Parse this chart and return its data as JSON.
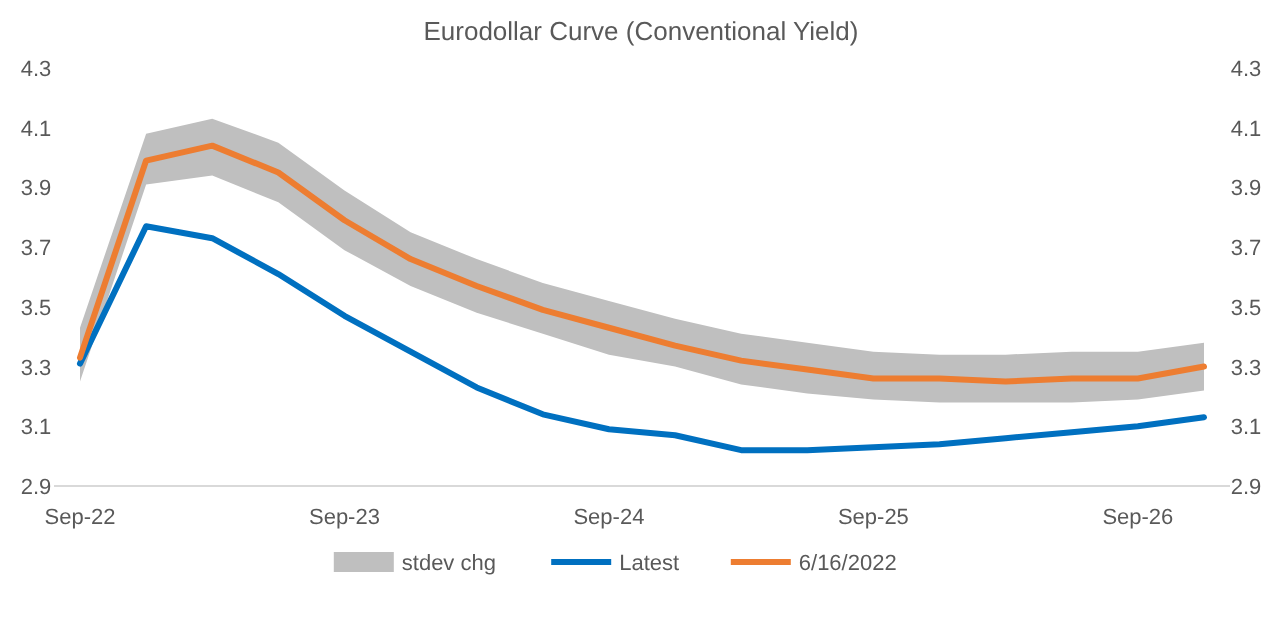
{
  "chart_data": {
    "type": "line",
    "title": "Eurodollar Curve (Conventional Yield)",
    "categories": [
      "Sep-22",
      null,
      null,
      null,
      "Sep-23",
      null,
      null,
      null,
      "Sep-24",
      null,
      null,
      null,
      "Sep-25",
      null,
      null,
      null,
      "Sep-26",
      null
    ],
    "series": [
      {
        "name": "Latest",
        "type": "line",
        "color": "#0070c0",
        "values": [
          3.31,
          3.77,
          3.73,
          3.61,
          3.47,
          3.35,
          3.23,
          3.14,
          3.09,
          3.07,
          3.02,
          3.02,
          3.03,
          3.04,
          3.06,
          3.08,
          3.1,
          3.13
        ]
      },
      {
        "name": "6/16/2022",
        "color": "#ed7d31",
        "values": [
          3.33,
          3.99,
          4.04,
          3.95,
          3.79,
          3.66,
          3.57,
          3.49,
          3.43,
          3.37,
          3.32,
          3.29,
          3.26,
          3.26,
          3.25,
          3.26,
          3.26,
          3.3
        ],
        "lower": [
          3.25,
          3.91,
          3.94,
          3.85,
          3.69,
          3.57,
          3.48,
          3.41,
          3.34,
          3.3,
          3.24,
          3.21,
          3.19,
          3.18,
          3.18,
          3.18,
          3.19,
          3.22
        ],
        "upper": [
          3.43,
          4.08,
          4.13,
          4.05,
          3.89,
          3.75,
          3.66,
          3.58,
          3.52,
          3.46,
          3.41,
          3.38,
          3.35,
          3.34,
          3.34,
          3.35,
          3.35,
          3.38
        ]
      }
    ],
    "annotations": [
      "stdev chg"
    ],
    "ylim": [
      2.9,
      4.3
    ],
    "yticks": [
      2.9,
      3.1,
      3.3,
      3.5,
      3.7,
      3.9,
      4.1,
      4.3
    ],
    "y2lim": [
      2.9,
      4.3
    ],
    "y2ticks": [
      2.9,
      3.1,
      3.3,
      3.5,
      3.7,
      3.9,
      4.1,
      4.3
    ],
    "legend": "bottom",
    "line_style": "solid",
    "marker": "none"
  }
}
